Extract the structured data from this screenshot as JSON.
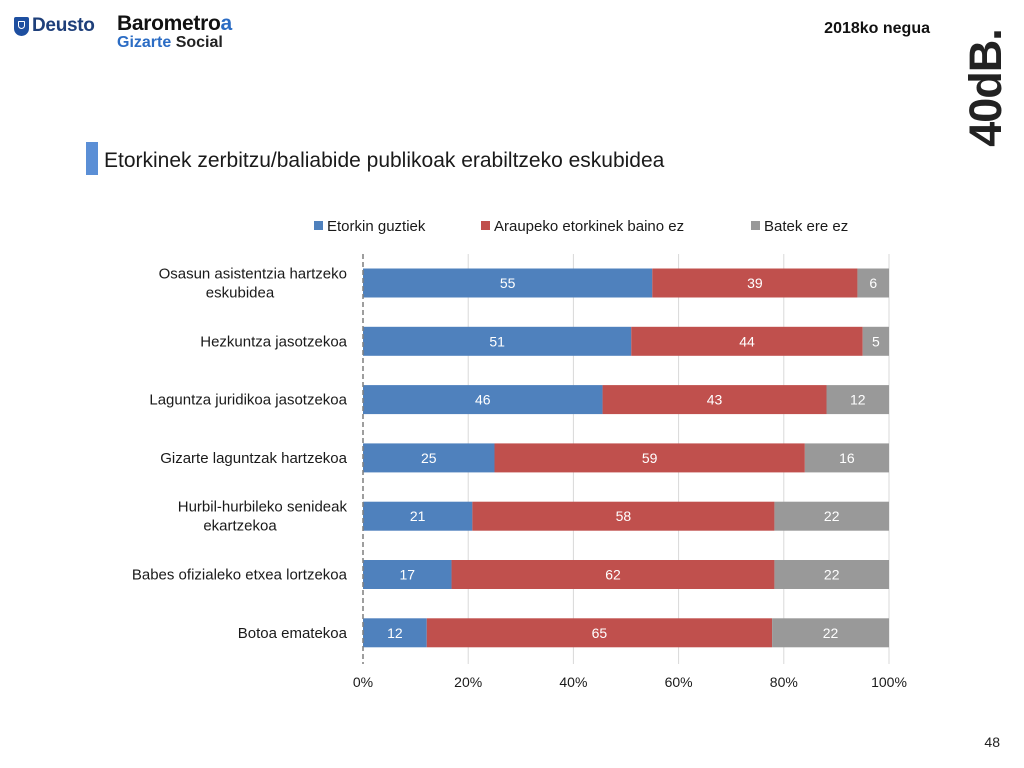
{
  "header": {
    "deusto_logo_text": "Deusto",
    "barometro_line1_a": "Barometro",
    "barometro_line1_b": "a",
    "barometro_line2_a": "Gizarte ",
    "barometro_line2_b": "Social",
    "date": "2018ko negua",
    "logo_40db": "40dB."
  },
  "title": "Etorkinek zerbitzu/baliabide publikoak erabiltzeko eskubidea",
  "page_number": "48",
  "colors": {
    "series": [
      "#4f81bd",
      "#c0504d",
      "#999999"
    ],
    "title_accent": "#5b8fd6",
    "deusto_blue": "#1e4fa0"
  },
  "chart_data": {
    "type": "bar",
    "orientation": "horizontal",
    "stacked": "percent",
    "categories": [
      [
        "Osasun asistentzia hartzeko",
        "eskubidea"
      ],
      [
        "Hezkuntza jasotzekoa"
      ],
      [
        "Laguntza juridikoa jasotzekoa"
      ],
      [
        "Gizarte laguntzak hartzekoa"
      ],
      [
        "Hurbil-hurbileko senideak",
        "ekartzekoa"
      ],
      [
        "Babes ofizialeko etxea lortzekoa"
      ],
      [
        "Botoa ematekoa"
      ]
    ],
    "series": [
      {
        "name": "Etorkin guztiek",
        "values": [
          55,
          51,
          46,
          25,
          21,
          17,
          12
        ]
      },
      {
        "name": "Araupeko etorkinek baino ez",
        "values": [
          39,
          44,
          43,
          59,
          58,
          62,
          65
        ]
      },
      {
        "name": "Batek ere ez",
        "values": [
          6,
          5,
          12,
          16,
          22,
          22,
          22
        ]
      }
    ],
    "xticks": [
      "0%",
      "20%",
      "40%",
      "60%",
      "80%",
      "100%"
    ],
    "xlim": [
      0,
      100
    ],
    "grid": true,
    "legend": "top"
  }
}
